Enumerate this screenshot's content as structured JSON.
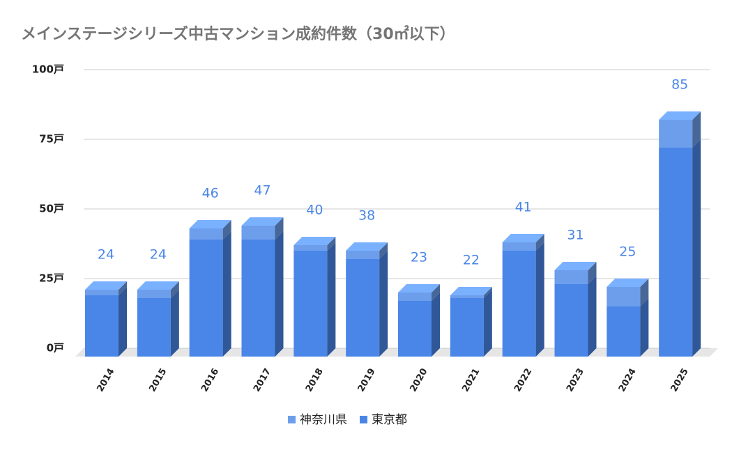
{
  "chart_data": {
    "type": "bar3d_stacked",
    "title": "メインステージシリーズ中古マンション成約件数（30㎡以下）",
    "categories": [
      "2014",
      "2015",
      "2016",
      "2017",
      "2018",
      "2019",
      "2020",
      "2021",
      "2022",
      "2023",
      "2024",
      "2025"
    ],
    "series": [
      {
        "name": "東京都",
        "color": "#4a86e8",
        "values": [
          22,
          21,
          42,
          42,
          38,
          35,
          20,
          21,
          38,
          26,
          18,
          75
        ]
      },
      {
        "name": "神奈川県",
        "color": "#6d9eeb",
        "values": [
          2,
          3,
          4,
          5,
          2,
          3,
          3,
          1,
          3,
          5,
          7,
          10
        ]
      }
    ],
    "totals": [
      24,
      24,
      46,
      47,
      40,
      38,
      23,
      22,
      41,
      31,
      25,
      85
    ],
    "ylim": [
      0,
      100
    ],
    "yticks": [
      {
        "value": 0,
        "label": "0戸"
      },
      {
        "value": 25,
        "label": "25戸"
      },
      {
        "value": 50,
        "label": "50戸"
      },
      {
        "value": 75,
        "label": "75戸"
      },
      {
        "value": 100,
        "label": "100戸"
      }
    ],
    "grid": true
  }
}
